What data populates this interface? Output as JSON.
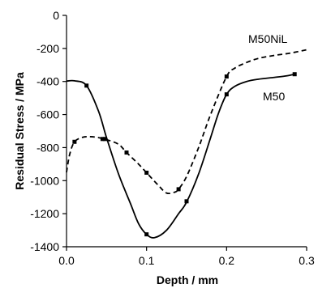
{
  "chart_data": {
    "type": "line",
    "xlabel": "Depth / mm",
    "ylabel": "Residual Stress / MPa",
    "xlim": [
      0.0,
      0.3
    ],
    "ylim": [
      -1400,
      0
    ],
    "x_ticks": [
      0.0,
      0.1,
      0.2,
      0.3
    ],
    "x_tick_labels": [
      "0.0",
      "0.1",
      "0.2",
      "0.3"
    ],
    "y_ticks": [
      0,
      -200,
      -400,
      -600,
      -800,
      -1000,
      -1200,
      -1400
    ],
    "y_tick_labels": [
      "0",
      "-200",
      "-400",
      "-600",
      "-800",
      "-1000",
      "-1200",
      "-1400"
    ],
    "grid": false,
    "legend": "none",
    "series": [
      {
        "name": "M50",
        "style": "solid",
        "color": "#000000",
        "curve": [
          [
            0.0,
            -398
          ],
          [
            0.01,
            -396
          ],
          [
            0.025,
            -425
          ],
          [
            0.04,
            -580
          ],
          [
            0.05,
            -740
          ],
          [
            0.065,
            -960
          ],
          [
            0.08,
            -1140
          ],
          [
            0.09,
            -1260
          ],
          [
            0.1,
            -1325
          ],
          [
            0.11,
            -1345
          ],
          [
            0.125,
            -1300
          ],
          [
            0.14,
            -1200
          ],
          [
            0.15,
            -1130
          ],
          [
            0.165,
            -960
          ],
          [
            0.18,
            -740
          ],
          [
            0.19,
            -590
          ],
          [
            0.2,
            -478
          ],
          [
            0.21,
            -430
          ],
          [
            0.225,
            -400
          ],
          [
            0.24,
            -386
          ],
          [
            0.26,
            -375
          ],
          [
            0.275,
            -366
          ],
          [
            0.285,
            -356
          ]
        ],
        "markers": [
          [
            0.025,
            -425
          ],
          [
            0.048,
            -748
          ],
          [
            0.1,
            -1325
          ],
          [
            0.15,
            -1125
          ],
          [
            0.2,
            -478
          ],
          [
            0.285,
            -356
          ]
        ]
      },
      {
        "name": "M50NiL",
        "style": "dashed",
        "color": "#000000",
        "curve": [
          [
            0.0,
            -950
          ],
          [
            0.004,
            -840
          ],
          [
            0.01,
            -765
          ],
          [
            0.02,
            -738
          ],
          [
            0.03,
            -734
          ],
          [
            0.04,
            -740
          ],
          [
            0.05,
            -752
          ],
          [
            0.065,
            -780
          ],
          [
            0.075,
            -830
          ],
          [
            0.09,
            -900
          ],
          [
            0.1,
            -952
          ],
          [
            0.115,
            -1030
          ],
          [
            0.125,
            -1075
          ],
          [
            0.135,
            -1070
          ],
          [
            0.14,
            -1052
          ],
          [
            0.15,
            -975
          ],
          [
            0.165,
            -800
          ],
          [
            0.18,
            -600
          ],
          [
            0.2,
            -370
          ],
          [
            0.21,
            -320
          ],
          [
            0.225,
            -285
          ],
          [
            0.24,
            -260
          ],
          [
            0.26,
            -242
          ],
          [
            0.28,
            -228
          ],
          [
            0.3,
            -208
          ]
        ],
        "markers": [
          [
            0.01,
            -765
          ],
          [
            0.045,
            -748
          ],
          [
            0.075,
            -830
          ],
          [
            0.1,
            -952
          ],
          [
            0.14,
            -1052
          ],
          [
            0.2,
            -370
          ]
        ]
      }
    ]
  }
}
